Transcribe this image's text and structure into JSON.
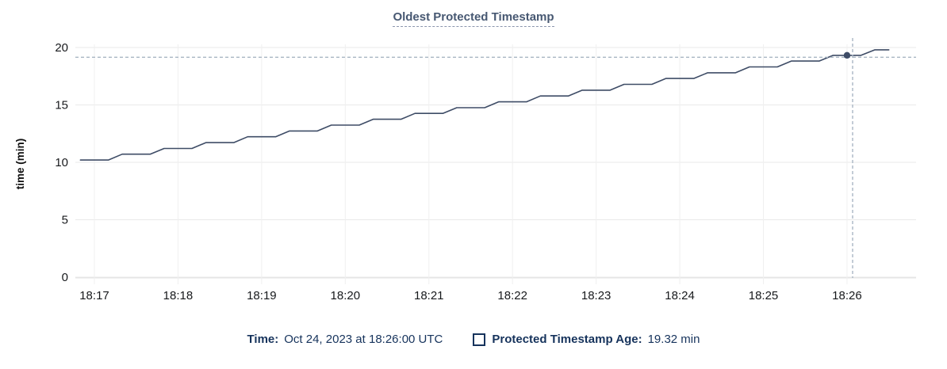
{
  "title": {
    "text": "Oldest Protected Timestamp"
  },
  "tooltip": {
    "time_label": "Time:",
    "time_value": "Oct 24, 2023 at 18:26:00 UTC",
    "series_label": "Protected Timestamp Age:",
    "series_value": "19.32 min"
  },
  "colors": {
    "line": "#3e4c66",
    "dot": "#3e4c66",
    "crosshair": "#a9b6c4",
    "grid_h": "#eaeaea",
    "grid_v": "#f0f0f0",
    "axis_line": "#e0e0e0",
    "tick_text": "#17191c",
    "title_text": "#475872",
    "legend_text": "#16335c"
  },
  "chart_data": {
    "type": "line",
    "title": "Oldest Protected Timestamp",
    "xlabel": "",
    "ylabel": "time (min)",
    "ylim": [
      0,
      20
    ],
    "yticks": [
      0,
      5,
      10,
      15,
      20
    ],
    "xticks": [
      "18:17",
      "18:18",
      "18:19",
      "18:20",
      "18:21",
      "18:22",
      "18:23",
      "18:24",
      "18:25",
      "18:26"
    ],
    "grid": true,
    "legend_position": "bottom-center",
    "series": [
      {
        "name": "Protected Timestamp Age",
        "unit": "min",
        "start_time": "18:16:50",
        "interval_seconds": 10,
        "values": [
          10.2,
          10.2,
          10.2,
          10.71,
          10.71,
          10.71,
          11.21,
          11.21,
          11.21,
          11.72,
          11.72,
          11.72,
          12.23,
          12.23,
          12.23,
          12.73,
          12.73,
          12.73,
          13.24,
          13.24,
          13.24,
          13.75,
          13.75,
          13.75,
          14.26,
          14.26,
          14.26,
          14.76,
          14.76,
          14.76,
          15.27,
          15.27,
          15.27,
          15.78,
          15.78,
          15.78,
          16.28,
          16.28,
          16.28,
          16.79,
          16.79,
          16.79,
          17.3,
          17.3,
          17.3,
          17.8,
          17.8,
          17.8,
          18.31,
          18.31,
          18.31,
          18.82,
          18.82,
          18.82,
          19.32,
          19.32,
          19.32,
          19.8,
          19.8
        ]
      }
    ],
    "crosshair": {
      "hover_time": "18:26:04",
      "hover_value": 19.15,
      "snap_time": "18:26:00",
      "snap_value": 19.32
    }
  }
}
